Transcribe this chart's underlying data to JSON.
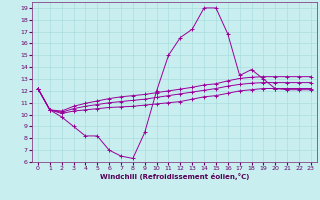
{
  "xlabel": "Windchill (Refroidissement éolien,°C)",
  "xlim": [
    -0.5,
    23.5
  ],
  "ylim": [
    6,
    19.5
  ],
  "xticks": [
    0,
    1,
    2,
    3,
    4,
    5,
    6,
    7,
    8,
    9,
    10,
    11,
    12,
    13,
    14,
    15,
    16,
    17,
    18,
    19,
    20,
    21,
    22,
    23
  ],
  "yticks": [
    6,
    7,
    8,
    9,
    10,
    11,
    12,
    13,
    14,
    15,
    16,
    17,
    18,
    19
  ],
  "background_color": "#c8eef0",
  "line_color": "#990099",
  "grid_color": "#aadddd",
  "lines": [
    {
      "x": [
        0,
        1,
        2,
        3,
        4,
        5,
        6,
        7,
        8,
        9,
        10,
        11,
        12,
        13,
        14,
        15,
        16,
        17,
        18,
        19,
        20,
        21,
        22,
        23
      ],
      "y": [
        12.2,
        10.4,
        9.8,
        9.0,
        8.2,
        8.2,
        7.0,
        6.5,
        6.3,
        8.5,
        12.0,
        15.0,
        16.5,
        17.2,
        19.0,
        19.0,
        16.8,
        13.3,
        13.8,
        13.0,
        12.2,
        12.1,
        12.1,
        12.1
      ]
    },
    {
      "x": [
        0,
        1,
        2,
        3,
        4,
        5,
        6,
        7,
        8,
        9,
        10,
        11,
        12,
        13,
        14,
        15,
        16,
        17,
        18,
        19,
        20,
        21,
        22,
        23
      ],
      "y": [
        12.2,
        10.4,
        10.1,
        10.3,
        10.4,
        10.5,
        10.6,
        10.65,
        10.7,
        10.8,
        10.9,
        11.0,
        11.1,
        11.3,
        11.5,
        11.6,
        11.8,
        12.0,
        12.1,
        12.2,
        12.2,
        12.2,
        12.2,
        12.2
      ]
    },
    {
      "x": [
        0,
        1,
        2,
        3,
        4,
        5,
        6,
        7,
        8,
        9,
        10,
        11,
        12,
        13,
        14,
        15,
        16,
        17,
        18,
        19,
        20,
        21,
        22,
        23
      ],
      "y": [
        12.2,
        10.4,
        10.2,
        10.5,
        10.7,
        10.85,
        11.0,
        11.1,
        11.2,
        11.3,
        11.45,
        11.6,
        11.75,
        11.9,
        12.05,
        12.2,
        12.4,
        12.55,
        12.65,
        12.7,
        12.7,
        12.7,
        12.7,
        12.7
      ]
    },
    {
      "x": [
        0,
        1,
        2,
        3,
        4,
        5,
        6,
        7,
        8,
        9,
        10,
        11,
        12,
        13,
        14,
        15,
        16,
        17,
        18,
        19,
        20,
        21,
        22,
        23
      ],
      "y": [
        12.2,
        10.4,
        10.3,
        10.7,
        10.95,
        11.15,
        11.35,
        11.5,
        11.6,
        11.7,
        11.85,
        12.0,
        12.15,
        12.3,
        12.5,
        12.6,
        12.85,
        13.05,
        13.15,
        13.2,
        13.2,
        13.2,
        13.2,
        13.2
      ]
    }
  ]
}
